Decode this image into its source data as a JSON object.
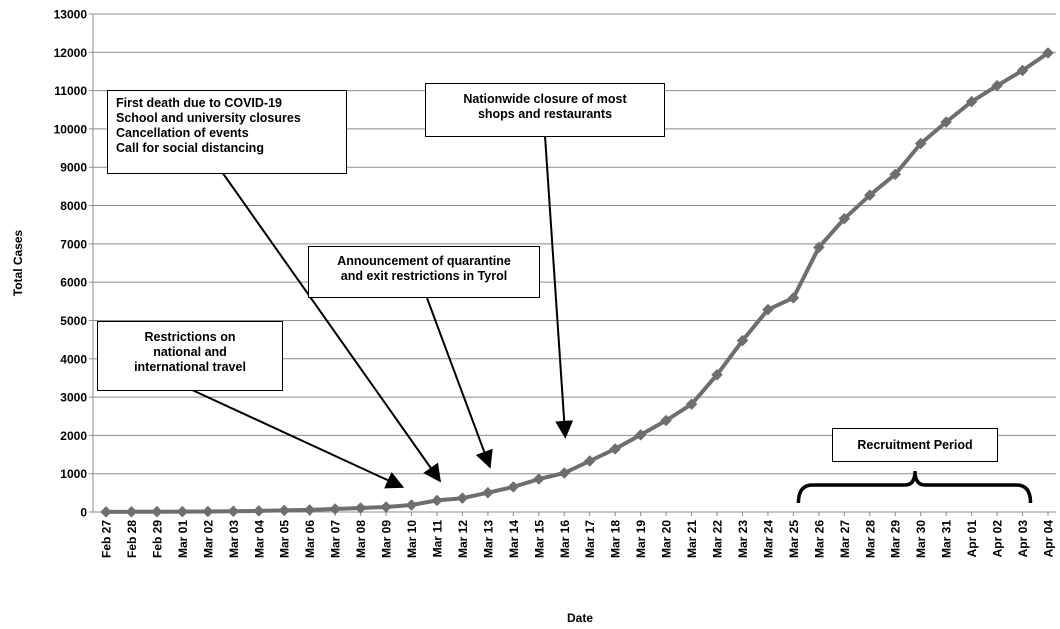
{
  "chart_data": {
    "type": "line",
    "title": "",
    "xlabel": "Date",
    "ylabel": "Total Cases",
    "ylim": [
      0,
      13000
    ],
    "yticks": [
      0,
      1000,
      2000,
      3000,
      4000,
      5000,
      6000,
      7000,
      8000,
      9000,
      10000,
      11000,
      12000,
      13000
    ],
    "grid": true,
    "legend": "none",
    "categories": [
      "Feb 27",
      "Feb 28",
      "Feb 29",
      "Mar 01",
      "Mar 02",
      "Mar 03",
      "Mar 04",
      "Mar 05",
      "Mar 06",
      "Mar 07",
      "Mar 08",
      "Mar 09",
      "Mar 10",
      "Mar 11",
      "Mar 12",
      "Mar 13",
      "Mar 14",
      "Mar 15",
      "Mar 16",
      "Mar 17",
      "Mar 18",
      "Mar 19",
      "Mar 20",
      "Mar 21",
      "Mar 22",
      "Mar 23",
      "Mar 24",
      "Mar 25",
      "Mar 26",
      "Mar 27",
      "Mar 28",
      "Mar 29",
      "Mar 30",
      "Mar 31",
      "Apr 01",
      "Apr 02",
      "Apr 03",
      "Apr 04"
    ],
    "series": [
      {
        "values": [
          3,
          5,
          9,
          10,
          14,
          18,
          29,
          41,
          55,
          79,
          104,
          131,
          182,
          302,
          361,
          504,
          655,
          860,
          1018,
          1332,
          1646,
          2013,
          2388,
          2814,
          3582,
          4474,
          5283,
          5588,
          6909,
          7657,
          8271,
          8813,
          9618,
          10180,
          10711,
          11129,
          11525,
          11983
        ]
      }
    ],
    "color": "#6e6e6e",
    "annotations": [
      {
        "lines": [
          "First death due to COVID-19",
          "School and university closures",
          "Cancellation of events",
          "Call for social distancing"
        ],
        "date": "Mar 11"
      },
      {
        "lines": [
          "Nationwide closure of most",
          "shops and restaurants"
        ],
        "date": "Mar 16"
      },
      {
        "lines": [
          "Announcement of quarantine",
          "and exit restrictions in Tyrol"
        ],
        "date": "Mar 13"
      },
      {
        "lines": [
          "Restrictions on",
          "national and",
          "international travel"
        ],
        "date": "Mar 10"
      },
      {
        "lines": [
          "Recruitment Period"
        ],
        "from": "Mar 25",
        "to": "Apr 03"
      }
    ]
  }
}
